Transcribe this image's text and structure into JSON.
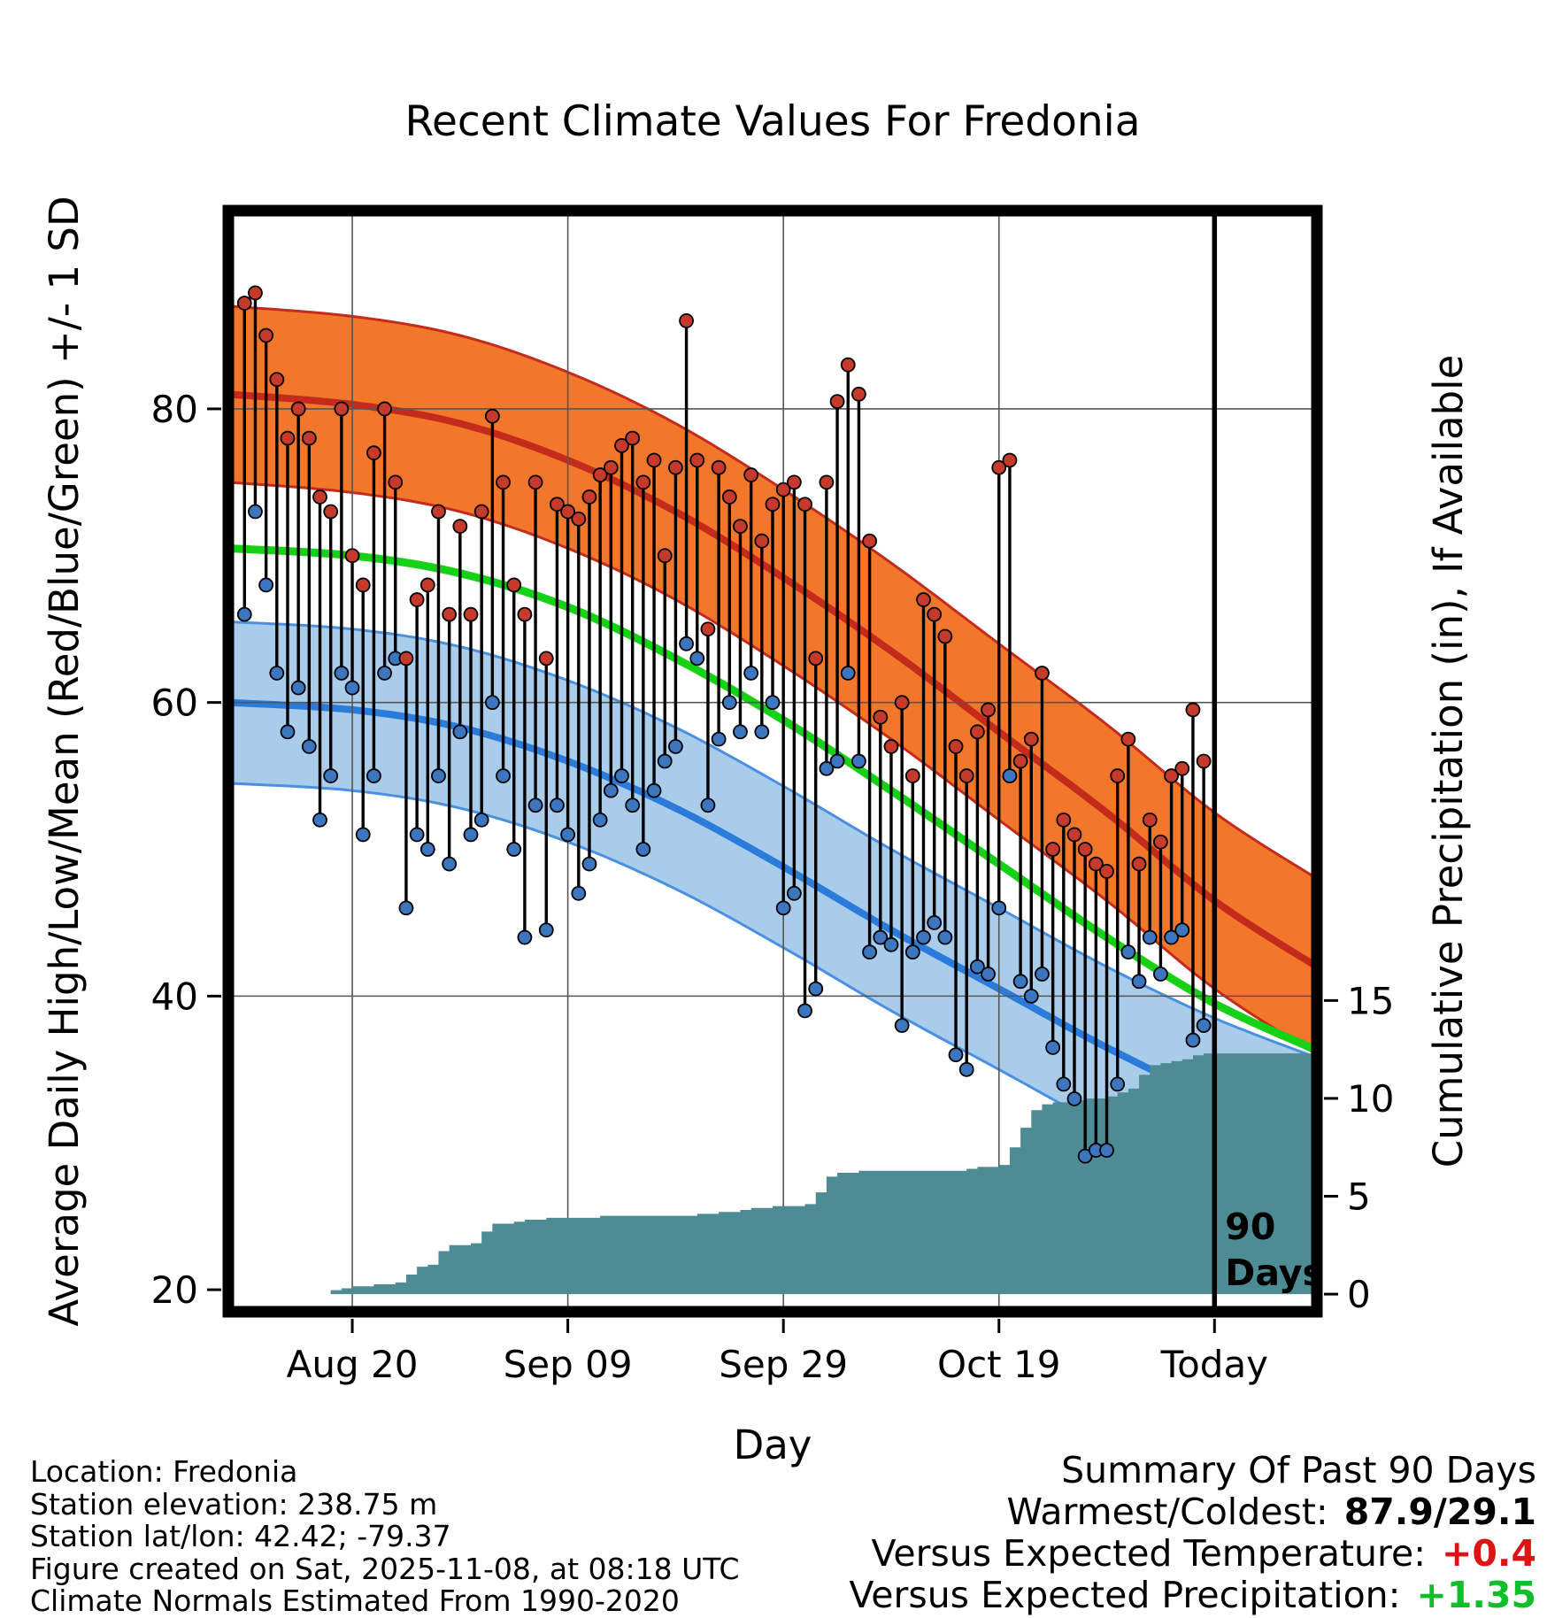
{
  "title": "Recent Climate Values For Fredonia",
  "footer": {
    "location": "Location: Fredonia",
    "elevation": "Station elevation: 238.75 m",
    "latlon": "Station lat/lon: 42.42; -79.37",
    "created": "Figure created on Sat, 2025-11-08, at 08:18 UTC",
    "normals_note": "Climate Normals Estimated From 1990-2020"
  },
  "summary": {
    "heading": "Summary Of Past 90 Days",
    "warmest_label": "Warmest/Coldest:",
    "warmest_value": "87.9/29.1",
    "temp_label": "Versus Expected Temperature:",
    "temp_value": "+0.4",
    "precip_label": "Versus Expected Precipitation:",
    "precip_value": "+1.35"
  },
  "colors": {
    "high_band": "#F2772B",
    "high_edge": "#C42B1C",
    "high_line": "#C42B1C",
    "low_band": "#A9CCEA",
    "low_edge": "#4A90E2",
    "low_line": "#2B7BDB",
    "mean_line": "#17D117",
    "precip_fill": "#4E8C95",
    "dot_high": "#C53A2B",
    "dot_low": "#3C76BE",
    "daily_line": "#000000",
    "grid": "#555555",
    "summary_temp": "#DC1414",
    "summary_precip": "#0FBF2A"
  },
  "chart_data": {
    "type": "line",
    "subtype": "climate-normals-composite (daily high/low range bars, normal bands ±1 SD, mean line, cumulative precipitation step area)",
    "title": "Recent Climate Values For Fredonia",
    "xlabel": "Day",
    "ylabel_left": "Average Daily High/Low/Mean (Red/Blue/Green) +/- 1 SD",
    "ylabel_right": "Cumulative Precipitation (in), If Available",
    "start_date": "2025-08-10",
    "today_day": 90,
    "marker_label": [
      "90",
      "Days"
    ],
    "x_range_days": [
      -1.5,
      99.5
    ],
    "temp_axis_range": [
      18.5,
      93.5
    ],
    "x_ticks": [
      {
        "day": 10,
        "label": "Aug 20"
      },
      {
        "day": 30,
        "label": "Sep 09"
      },
      {
        "day": 50,
        "label": "Sep 29"
      },
      {
        "day": 70,
        "label": "Oct 19"
      },
      {
        "day": 90,
        "label": "Today"
      }
    ],
    "y_ticks_temp": [
      20,
      40,
      60,
      80
    ],
    "y_ticks_precip": [
      0,
      5,
      10,
      15
    ],
    "daily": {
      "highs": [
        87.2,
        87.9,
        85,
        82,
        78,
        80,
        78,
        74,
        73,
        80,
        70,
        68,
        77,
        80,
        75,
        63,
        67,
        68,
        73,
        66,
        72,
        66,
        73,
        79.5,
        75,
        68,
        66,
        75,
        63,
        73.5,
        73,
        72.5,
        74,
        75.5,
        76,
        77.5,
        78,
        75,
        76.5,
        70,
        76,
        86,
        76.5,
        65,
        76,
        74,
        72,
        75.5,
        71,
        73.5,
        74.5,
        75,
        73.5,
        63,
        75,
        80.5,
        83,
        81,
        71,
        59,
        57,
        60,
        55,
        67,
        66,
        64.5,
        57,
        55,
        58,
        59.5,
        76,
        76.5,
        56,
        57.5,
        62,
        50,
        52,
        51,
        50,
        49,
        48.5,
        55,
        57.5,
        49,
        52,
        50.5,
        55,
        55.5,
        59.5,
        56
      ],
      "lows": [
        66,
        73,
        68,
        62,
        58,
        61,
        57,
        52,
        55,
        62,
        61,
        51,
        55,
        62,
        63,
        46,
        51,
        50,
        55,
        49,
        58,
        51,
        52,
        60,
        55,
        50,
        44,
        53,
        44.5,
        53,
        51,
        47,
        49,
        52,
        54,
        55,
        53,
        50,
        54,
        56,
        57,
        64,
        63,
        53,
        57.5,
        60,
        58,
        62,
        58,
        60,
        46,
        47,
        39,
        40.5,
        55.5,
        56,
        62,
        56,
        43,
        44,
        43.5,
        38,
        43,
        44,
        45,
        44,
        36,
        35,
        42,
        41.5,
        46,
        55,
        41,
        40,
        41.5,
        36.5,
        34,
        33,
        29.1,
        29.5,
        29.5,
        34,
        43,
        41,
        44,
        41.5,
        44,
        44.5,
        37,
        38
      ]
    },
    "precip_cumulative": [
      0,
      0,
      0,
      0,
      0,
      0,
      0,
      0,
      0.2,
      0.3,
      0.4,
      0.4,
      0.5,
      0.5,
      0.6,
      1,
      1.4,
      1.5,
      2.2,
      2.5,
      2.5,
      2.6,
      3.2,
      3.6,
      3.6,
      3.7,
      3.8,
      3.8,
      3.9,
      3.9,
      3.9,
      3.9,
      3.9,
      4,
      4,
      4,
      4,
      4,
      4,
      4,
      4,
      4,
      4.1,
      4.1,
      4.2,
      4.2,
      4.3,
      4.4,
      4.4,
      4.5,
      4.5,
      4.5,
      4.6,
      5.2,
      6,
      6.2,
      6.2,
      6.3,
      6.3,
      6.3,
      6.3,
      6.3,
      6.3,
      6.3,
      6.3,
      6.3,
      6.3,
      6.4,
      6.5,
      6.5,
      6.6,
      7.5,
      8.5,
      9.4,
      9.7,
      9.8,
      9.8,
      9.9,
      10,
      10,
      10.1,
      10.3,
      10.5,
      11.2,
      11.7,
      11.8,
      11.9,
      12,
      12.2,
      12.3
    ],
    "normals": {
      "days": [
        -1.5,
        10,
        20,
        30,
        40,
        50,
        60,
        70,
        80,
        90,
        99.5
      ],
      "high_mean": [
        81,
        80.3,
        79,
        76.5,
        73,
        68.5,
        63.5,
        58,
        52.5,
        46.5,
        42
      ],
      "high_sd": 6,
      "mean": [
        70.5,
        70,
        68.8,
        66.5,
        63,
        58.8,
        54,
        49,
        44,
        39.5,
        36.3
      ],
      "low_mean": [
        60,
        59.5,
        58.3,
        56,
        52.8,
        48.8,
        44.5,
        40.5,
        36.5,
        33,
        30.3
      ],
      "low_sd": 5.5
    }
  }
}
